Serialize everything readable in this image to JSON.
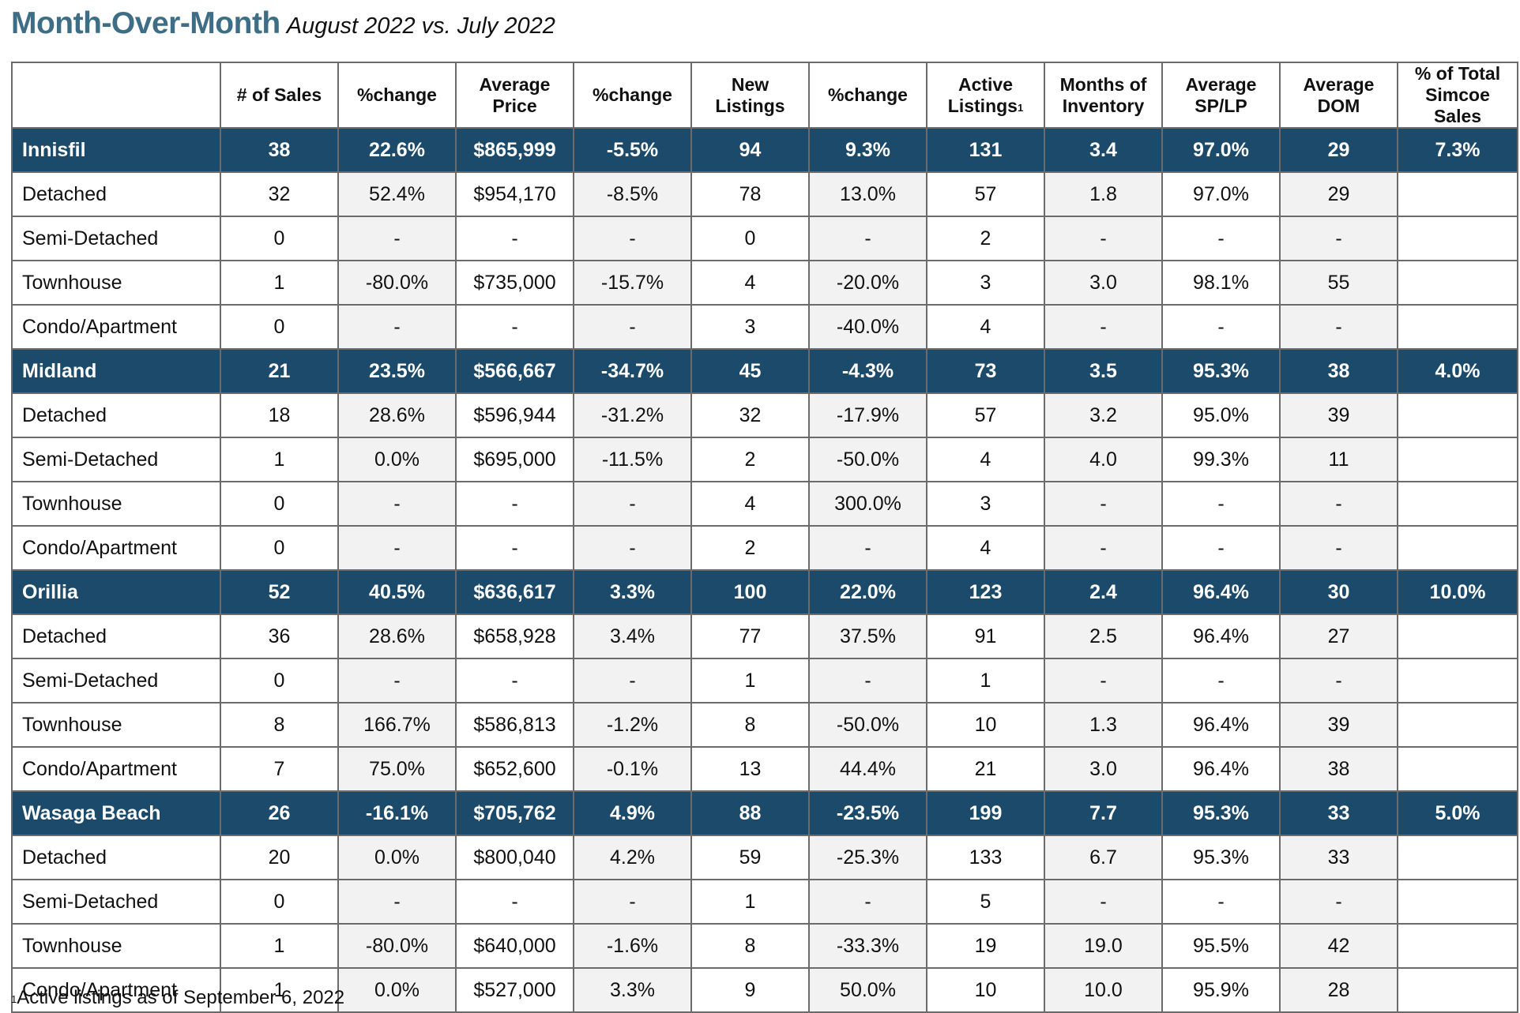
{
  "heading": {
    "title": "Month-Over-Month",
    "subtitle": "August 2022 vs. July 2022"
  },
  "colors": {
    "title": "#3d6e85",
    "region_row_bg": "#1b4a6b",
    "region_row_text": "#ffffff",
    "shaded_cell": "#f2f2f2"
  },
  "table": {
    "columns": [
      {
        "line1": "",
        "line2": "",
        "line3": ""
      },
      {
        "line1": "# of Sales",
        "line2": "",
        "line3": ""
      },
      {
        "line1": "%change",
        "line2": "",
        "line3": ""
      },
      {
        "line1": "Average",
        "line2": "Price",
        "line3": ""
      },
      {
        "line1": "%change",
        "line2": "",
        "line3": ""
      },
      {
        "line1": "New",
        "line2": "Listings",
        "line3": ""
      },
      {
        "line1": "%change",
        "line2": "",
        "line3": ""
      },
      {
        "line1": "Active",
        "line2": "Listings",
        "line3": "",
        "sup": "1"
      },
      {
        "line1": "Months of",
        "line2": "Inventory",
        "line3": ""
      },
      {
        "line1": "Average",
        "line2": "SP/LP",
        "line3": ""
      },
      {
        "line1": "Average",
        "line2": "DOM",
        "line3": ""
      },
      {
        "line1": "% of Total",
        "line2": "Simcoe",
        "line3": "Sales"
      }
    ],
    "rows": [
      {
        "type": "region",
        "cells": [
          "Innisfil",
          "38",
          "22.6%",
          "$865,999",
          "-5.5%",
          "94",
          "9.3%",
          "131",
          "3.4",
          "97.0%",
          "29",
          "7.3%"
        ]
      },
      {
        "type": "sub",
        "cells": [
          "Detached",
          "32",
          "52.4%",
          "$954,170",
          "-8.5%",
          "78",
          "13.0%",
          "57",
          "1.8",
          "97.0%",
          "29",
          ""
        ]
      },
      {
        "type": "sub",
        "cells": [
          "Semi-Detached",
          "0",
          "-",
          "-",
          "-",
          "0",
          "-",
          "2",
          "-",
          "-",
          "-",
          ""
        ]
      },
      {
        "type": "sub",
        "cells": [
          "Townhouse",
          "1",
          "-80.0%",
          "$735,000",
          "-15.7%",
          "4",
          "-20.0%",
          "3",
          "3.0",
          "98.1%",
          "55",
          ""
        ]
      },
      {
        "type": "sub",
        "cells": [
          "Condo/Apartment",
          "0",
          "-",
          "-",
          "-",
          "3",
          "-40.0%",
          "4",
          "-",
          "-",
          "-",
          ""
        ]
      },
      {
        "type": "region",
        "cells": [
          "Midland",
          "21",
          "23.5%",
          "$566,667",
          "-34.7%",
          "45",
          "-4.3%",
          "73",
          "3.5",
          "95.3%",
          "38",
          "4.0%"
        ]
      },
      {
        "type": "sub",
        "cells": [
          "Detached",
          "18",
          "28.6%",
          "$596,944",
          "-31.2%",
          "32",
          "-17.9%",
          "57",
          "3.2",
          "95.0%",
          "39",
          ""
        ]
      },
      {
        "type": "sub",
        "cells": [
          "Semi-Detached",
          "1",
          "0.0%",
          "$695,000",
          "-11.5%",
          "2",
          "-50.0%",
          "4",
          "4.0",
          "99.3%",
          "11",
          ""
        ]
      },
      {
        "type": "sub",
        "cells": [
          "Townhouse",
          "0",
          "-",
          "-",
          "-",
          "4",
          "300.0%",
          "3",
          "-",
          "-",
          "-",
          ""
        ]
      },
      {
        "type": "sub",
        "cells": [
          "Condo/Apartment",
          "0",
          "-",
          "-",
          "-",
          "2",
          "-",
          "4",
          "-",
          "-",
          "-",
          ""
        ]
      },
      {
        "type": "region",
        "cells": [
          "Orillia",
          "52",
          "40.5%",
          "$636,617",
          "3.3%",
          "100",
          "22.0%",
          "123",
          "2.4",
          "96.4%",
          "30",
          "10.0%"
        ]
      },
      {
        "type": "sub",
        "cells": [
          "Detached",
          "36",
          "28.6%",
          "$658,928",
          "3.4%",
          "77",
          "37.5%",
          "91",
          "2.5",
          "96.4%",
          "27",
          ""
        ]
      },
      {
        "type": "sub",
        "cells": [
          "Semi-Detached",
          "0",
          "-",
          "-",
          "-",
          "1",
          "-",
          "1",
          "-",
          "-",
          "-",
          ""
        ]
      },
      {
        "type": "sub",
        "cells": [
          "Townhouse",
          "8",
          "166.7%",
          "$586,813",
          "-1.2%",
          "8",
          "-50.0%",
          "10",
          "1.3",
          "96.4%",
          "39",
          ""
        ]
      },
      {
        "type": "sub",
        "cells": [
          "Condo/Apartment",
          "7",
          "75.0%",
          "$652,600",
          "-0.1%",
          "13",
          "44.4%",
          "21",
          "3.0",
          "96.4%",
          "38",
          ""
        ]
      },
      {
        "type": "region",
        "cells": [
          "Wasaga Beach",
          "26",
          "-16.1%",
          "$705,762",
          "4.9%",
          "88",
          "-23.5%",
          "199",
          "7.7",
          "95.3%",
          "33",
          "5.0%"
        ]
      },
      {
        "type": "sub",
        "cells": [
          "Detached",
          "20",
          "0.0%",
          "$800,040",
          "4.2%",
          "59",
          "-25.3%",
          "133",
          "6.7",
          "95.3%",
          "33",
          ""
        ]
      },
      {
        "type": "sub",
        "cells": [
          "Semi-Detached",
          "0",
          "-",
          "-",
          "-",
          "1",
          "-",
          "5",
          "-",
          "-",
          "-",
          ""
        ]
      },
      {
        "type": "sub",
        "cells": [
          "Townhouse",
          "1",
          "-80.0%",
          "$640,000",
          "-1.6%",
          "8",
          "-33.3%",
          "19",
          "19.0",
          "95.5%",
          "42",
          ""
        ]
      },
      {
        "type": "sub",
        "cells": [
          "Condo/Apartment",
          "1",
          "0.0%",
          "$527,000",
          "3.3%",
          "9",
          "50.0%",
          "10",
          "10.0",
          "95.9%",
          "28",
          ""
        ]
      }
    ]
  },
  "footnote": {
    "marker": "1",
    "text": "Active listings as of September 6, 2022"
  }
}
